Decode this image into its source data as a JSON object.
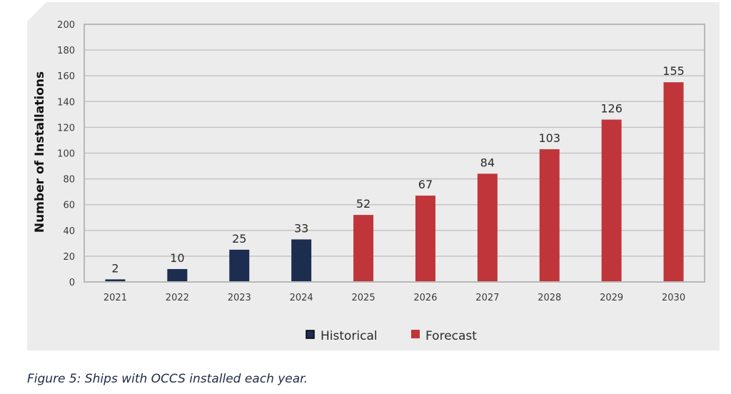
{
  "chart_data": {
    "type": "bar",
    "title": "",
    "xlabel": "",
    "ylabel": "Number of Installations",
    "ylim": [
      0,
      200
    ],
    "yticks": [
      0,
      20,
      40,
      60,
      80,
      100,
      120,
      140,
      160,
      180,
      200
    ],
    "grid": true,
    "legend_position": "bottom-center",
    "categories": [
      "2021",
      "2022",
      "2023",
      "2024",
      "2025",
      "2026",
      "2027",
      "2028",
      "2029",
      "2030"
    ],
    "values": [
      2,
      10,
      25,
      33,
      52,
      67,
      84,
      103,
      126,
      155
    ],
    "series_assignment": [
      "Historical",
      "Historical",
      "Historical",
      "Historical",
      "Forecast",
      "Forecast",
      "Forecast",
      "Forecast",
      "Forecast",
      "Forecast"
    ],
    "series": [
      {
        "name": "Historical",
        "color": "#1c2d50",
        "categories": [
          "2021",
          "2022",
          "2023",
          "2024"
        ],
        "values": [
          2,
          10,
          25,
          33
        ]
      },
      {
        "name": "Forecast",
        "color": "#c0353a",
        "categories": [
          "2025",
          "2026",
          "2027",
          "2028",
          "2029",
          "2030"
        ],
        "values": [
          52,
          67,
          84,
          103,
          126,
          155
        ]
      }
    ],
    "data_labels": [
      "2",
      "10",
      "25",
      "33",
      "52",
      "67",
      "84",
      "103",
      "126",
      "155"
    ]
  },
  "colors": {
    "historical": "#1c2d50",
    "forecast": "#c0353a",
    "panel_background": "#ececec",
    "grid": "#c4c4c4"
  },
  "legend": {
    "items": [
      {
        "label": "Historical",
        "color": "#1c2d50"
      },
      {
        "label": "Forecast",
        "color": "#c0353a"
      }
    ]
  },
  "caption": "Figure 5: Ships with OCCS installed each year."
}
